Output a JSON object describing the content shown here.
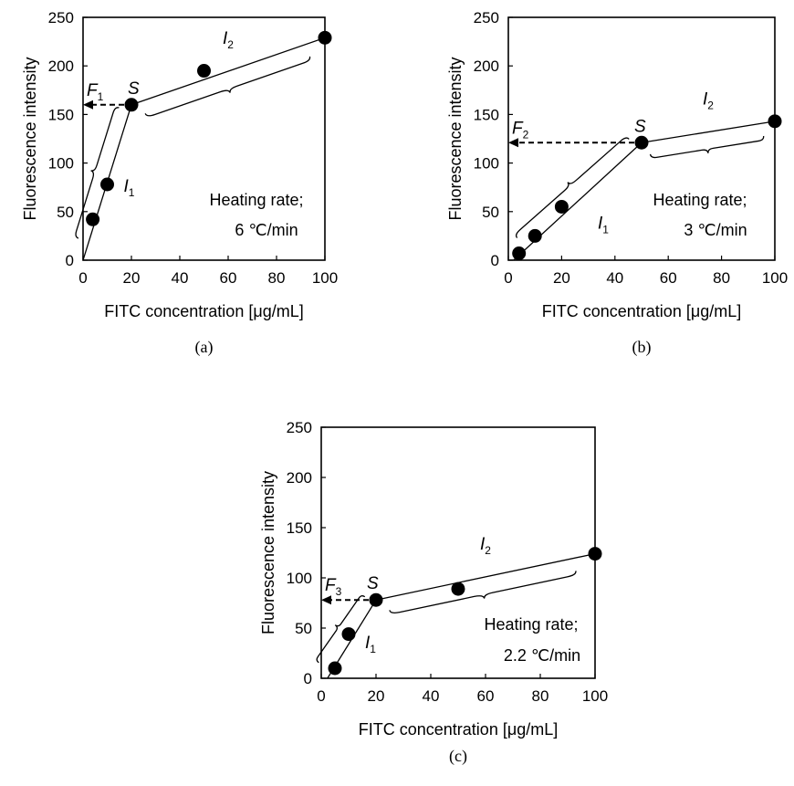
{
  "chart_data": [
    {
      "panel": "a",
      "type": "scatter",
      "xlabel": "FITC concentration  [μg/mL]",
      "ylabel": "Fluorescence intensity",
      "xlim": [
        0,
        100
      ],
      "ylim": [
        0,
        250
      ],
      "xticks": [
        "0",
        "20",
        "40",
        "60",
        "80",
        "100"
      ],
      "yticks": [
        "0",
        "50",
        "100",
        "150",
        "200",
        "250"
      ],
      "points": [
        {
          "x": 4,
          "y": 42
        },
        {
          "x": 10,
          "y": 78
        },
        {
          "x": 20,
          "y": 160
        },
        {
          "x": 50,
          "y": 195
        },
        {
          "x": 100,
          "y": 229
        }
      ],
      "fit_lines": [
        {
          "from": [
            0,
            0
          ],
          "to": [
            20,
            160
          ]
        },
        {
          "from": [
            20,
            160
          ],
          "to": [
            100,
            229
          ]
        }
      ],
      "annotations": {
        "F": "F",
        "F_sub": "1",
        "S": "S",
        "I1": "I",
        "I1_sub": "1",
        "I2": "I",
        "I2_sub": "2",
        "note_line1": "Heating rate;",
        "note_line2": "6 ℃/min"
      },
      "F_level": 160,
      "caption": "(a)"
    },
    {
      "panel": "b",
      "type": "scatter",
      "xlabel": "FITC concentration  [μg/mL]",
      "ylabel": "Fluorescence intensity",
      "xlim": [
        0,
        100
      ],
      "ylim": [
        0,
        250
      ],
      "xticks": [
        "0",
        "20",
        "40",
        "60",
        "80",
        "100"
      ],
      "yticks": [
        "0",
        "50",
        "100",
        "150",
        "200",
        "250"
      ],
      "points": [
        {
          "x": 4,
          "y": 7
        },
        {
          "x": 10,
          "y": 25
        },
        {
          "x": 20,
          "y": 55
        },
        {
          "x": 50,
          "y": 121
        },
        {
          "x": 100,
          "y": 143
        }
      ],
      "fit_lines": [
        {
          "from": [
            0,
            -5
          ],
          "to": [
            50,
            121
          ]
        },
        {
          "from": [
            50,
            121
          ],
          "to": [
            100,
            143
          ]
        }
      ],
      "annotations": {
        "F": "F",
        "F_sub": "2",
        "S": "S",
        "I1": "I",
        "I1_sub": "1",
        "I2": "I",
        "I2_sub": "2",
        "note_line1": "Heating rate;",
        "note_line2": "3 ℃/min"
      },
      "F_level": 121,
      "caption": "(b)"
    },
    {
      "panel": "c",
      "type": "scatter",
      "xlabel": "FITC concentration  [μg/mL]",
      "ylabel": "Fluorescence intensity",
      "xlim": [
        0,
        100
      ],
      "ylim": [
        0,
        250
      ],
      "xticks": [
        "0",
        "20",
        "40",
        "60",
        "80",
        "100"
      ],
      "yticks": [
        "0",
        "50",
        "100",
        "150",
        "200",
        "250"
      ],
      "points": [
        {
          "x": 5,
          "y": 10
        },
        {
          "x": 10,
          "y": 44
        },
        {
          "x": 20,
          "y": 78
        },
        {
          "x": 50,
          "y": 89
        },
        {
          "x": 100,
          "y": 124
        }
      ],
      "fit_lines": [
        {
          "from": [
            0,
            -10
          ],
          "to": [
            20,
            78
          ]
        },
        {
          "from": [
            20,
            78
          ],
          "to": [
            100,
            124
          ]
        }
      ],
      "annotations": {
        "F": "F",
        "F_sub": "3",
        "S": "S",
        "I1": "I",
        "I1_sub": "1",
        "I2": "I",
        "I2_sub": "2",
        "note_line1": "Heating rate;",
        "note_line2": "2.2 ℃/min"
      },
      "F_level": 78,
      "caption": "(c)"
    }
  ]
}
